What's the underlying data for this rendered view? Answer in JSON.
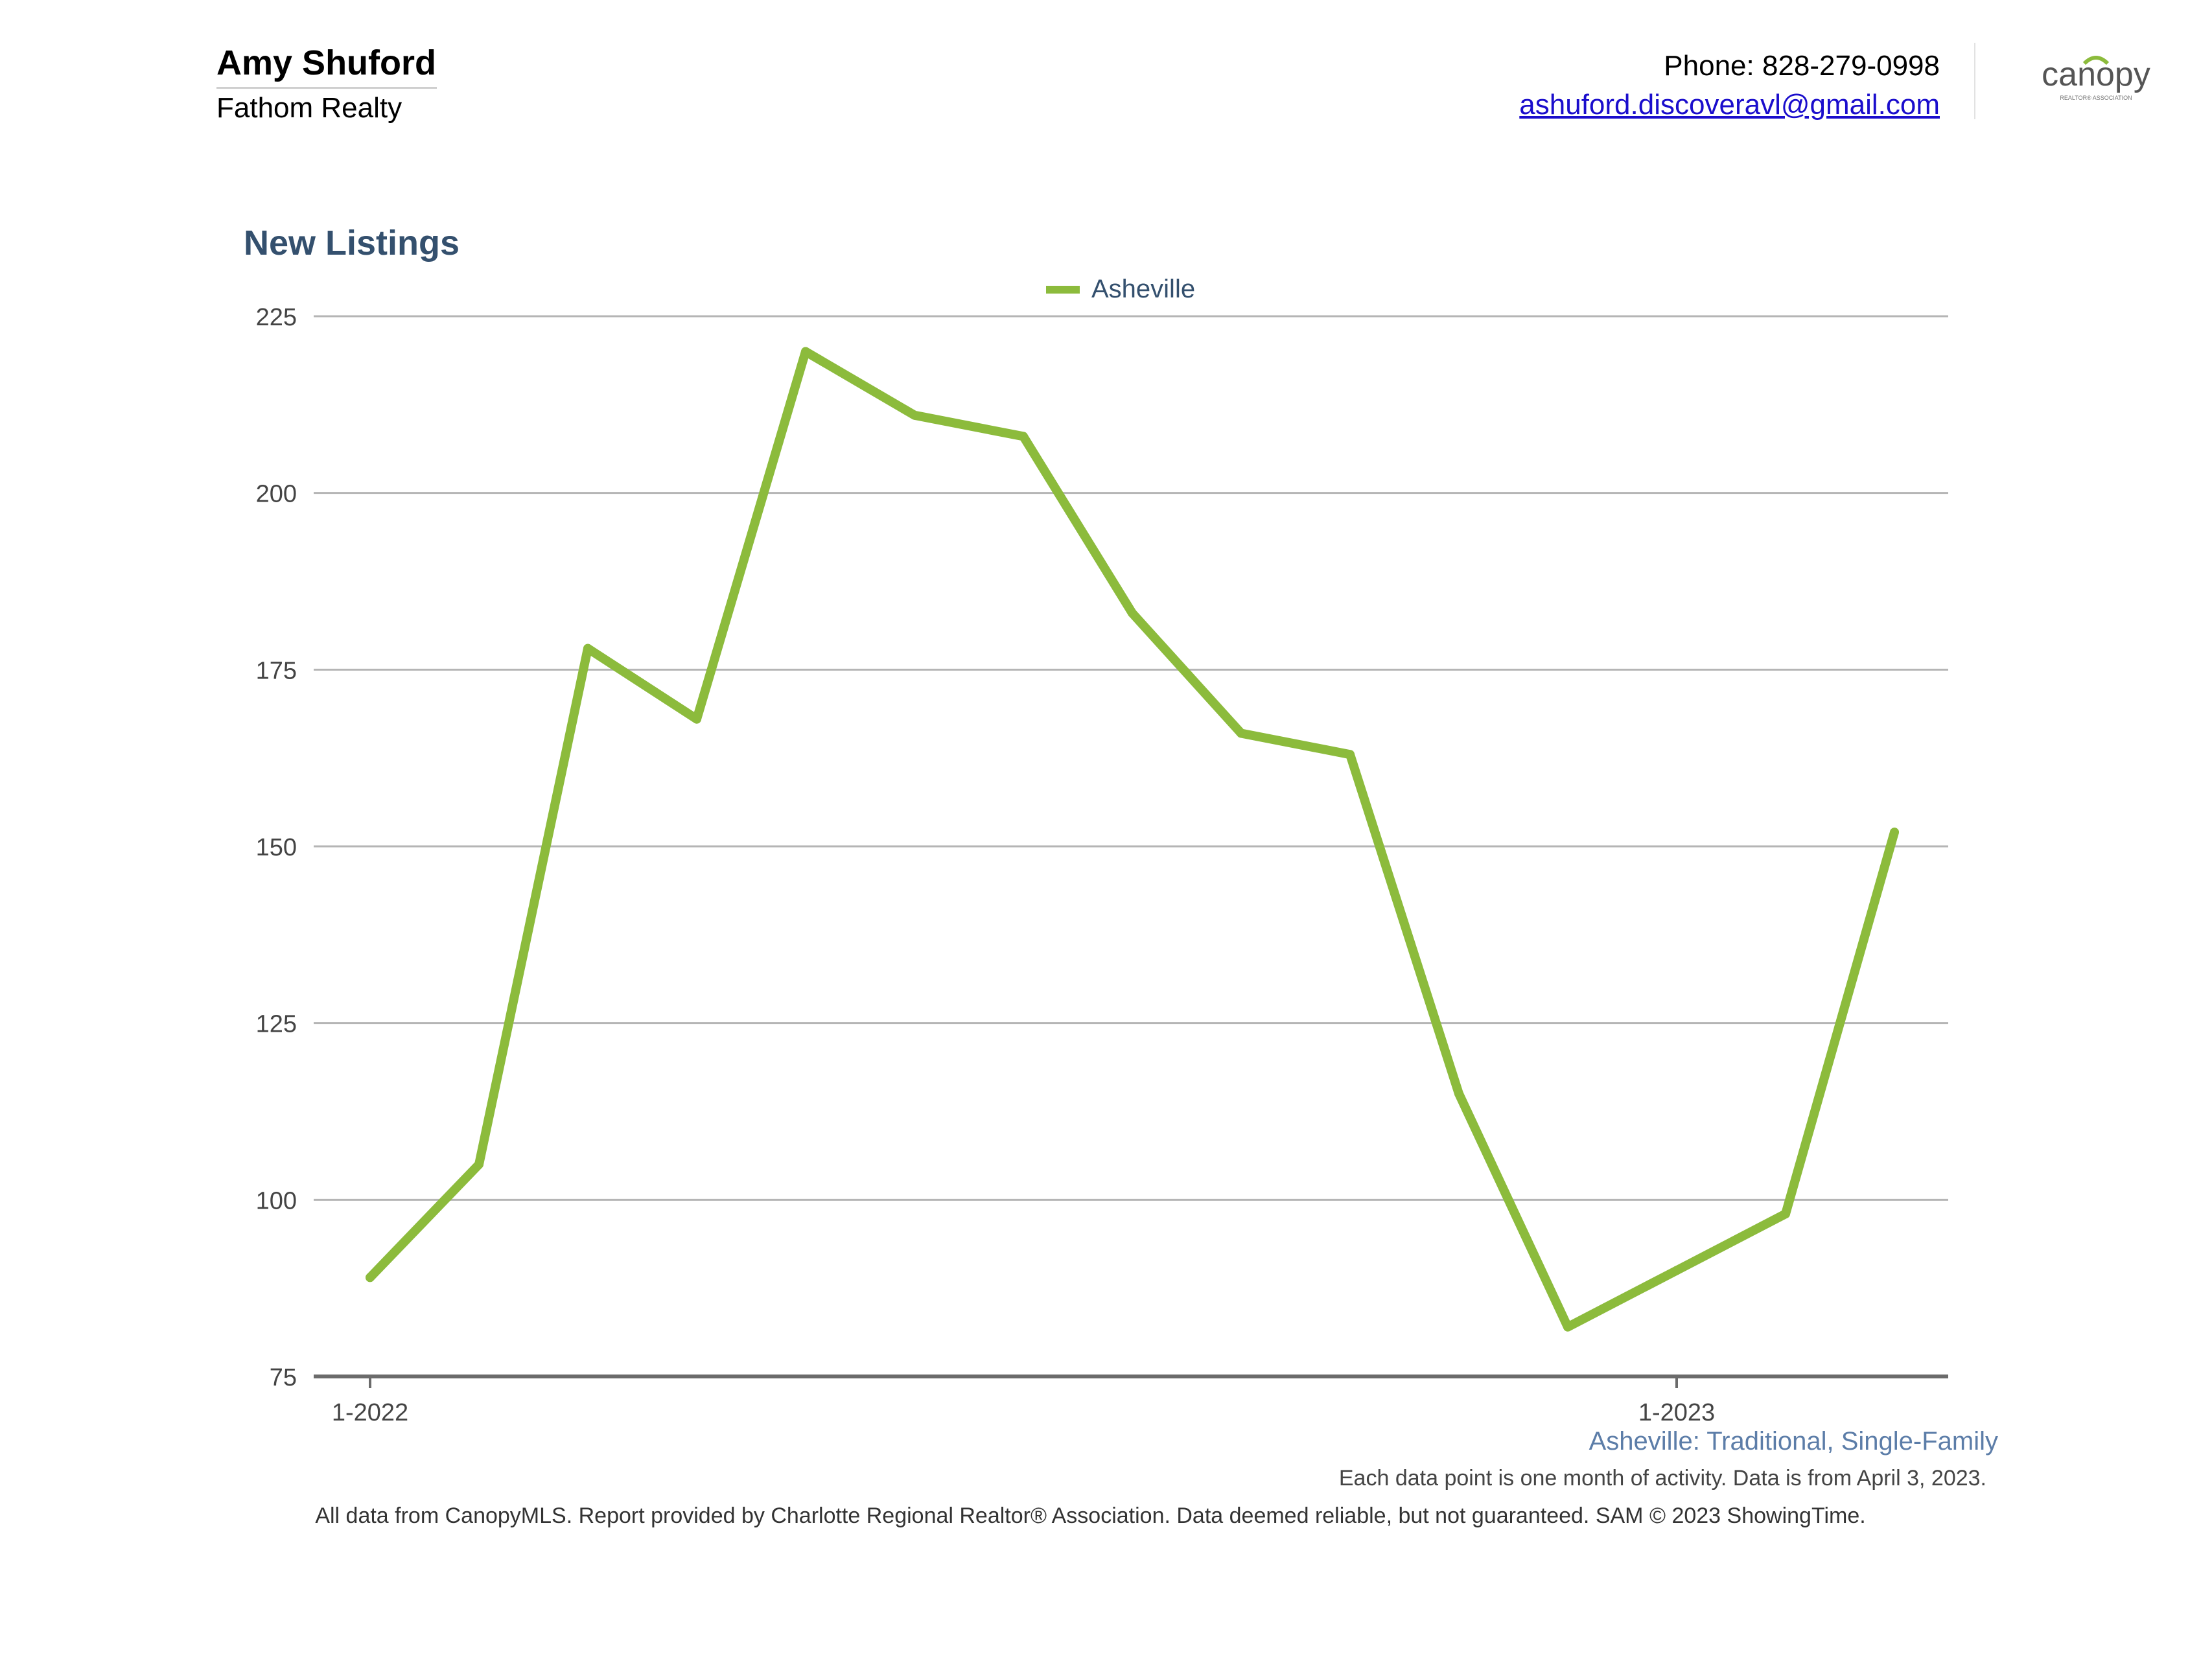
{
  "header": {
    "agent_name": "Amy Shuford",
    "company": "Fathom Realty",
    "phone": "Phone: 828-279-0998",
    "email": "ashuford.discoveravl@gmail.com",
    "logo_text": "canopy",
    "logo_subtext": "REALTOR® ASSOCIATION"
  },
  "colors": {
    "series": "#8cbb3c",
    "title": "#34506e",
    "grid": "#b5b5b5",
    "axis": "#6b6b6b"
  },
  "chart_data": {
    "type": "line",
    "title": "New Listings",
    "x": [
      "2022-01",
      "2022-02",
      "2022-03",
      "2022-04",
      "2022-05",
      "2022-06",
      "2022-07",
      "2022-08",
      "2022-09",
      "2022-10",
      "2022-11",
      "2022-12",
      "2023-01",
      "2023-02",
      "2023-03"
    ],
    "x_tick_labels": [
      {
        "x": "2022-01",
        "label": "1-2022"
      },
      {
        "x": "2023-01",
        "label": "1-2023"
      }
    ],
    "series": [
      {
        "name": "Asheville",
        "values": [
          89,
          105,
          178,
          168,
          220,
          211,
          208,
          183,
          166,
          163,
          115,
          82,
          90,
          98,
          152
        ]
      }
    ],
    "ylim": [
      75,
      225
    ],
    "yticks": [
      75,
      100,
      125,
      150,
      175,
      200,
      225
    ],
    "grid": true,
    "legend": "top-center"
  },
  "footer": {
    "subtitle": "Asheville: Traditional, Single-Family",
    "note": "Each data point is one month of activity. Data is from April 3, 2023.",
    "disclaimer": "All data from CanopyMLS. Report provided by Charlotte Regional Realtor® Association. Data deemed reliable, but not guaranteed. SAM © 2023 ShowingTime."
  }
}
